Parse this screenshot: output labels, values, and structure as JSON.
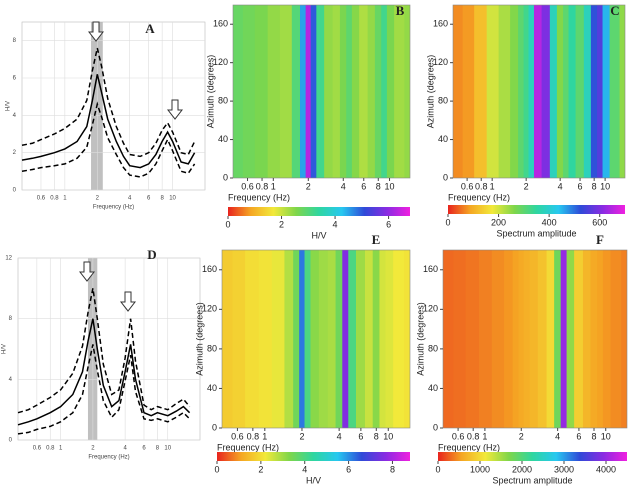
{
  "chart_data": [
    {
      "type": "line",
      "panel_label": "A",
      "xlabel": "Frequency (Hz)",
      "ylabel": "H/V",
      "xscale": "log",
      "grid": true,
      "xlim": [
        0.4,
        20
      ],
      "ylim": [
        0,
        9
      ],
      "xticks": [
        0.6,
        0.8,
        1,
        2,
        4,
        6,
        8,
        10
      ],
      "yticks": [
        0,
        2,
        4,
        6,
        8
      ],
      "shaded_band": [
        1.75,
        2.25
      ],
      "x": [
        0.4,
        0.5,
        0.6,
        0.8,
        1,
        1.3,
        1.6,
        1.8,
        2,
        2.2,
        2.5,
        3,
        3.5,
        4,
        5,
        6,
        7,
        8,
        9,
        10,
        12,
        14,
        16
      ],
      "series": [
        {
          "color": "#000000",
          "dashed": true,
          "values": [
            2.4,
            2.5,
            2.7,
            3.0,
            3.3,
            3.8,
            4.8,
            6.4,
            7.6,
            6.6,
            4.9,
            3.4,
            2.5,
            1.9,
            1.8,
            2.0,
            2.5,
            3.2,
            3.6,
            3.1,
            2.0,
            1.9,
            2.6
          ]
        },
        {
          "color": "#000000",
          "dashed": false,
          "values": [
            1.6,
            1.7,
            1.8,
            2.0,
            2.2,
            2.6,
            3.4,
            4.8,
            6.2,
            5.2,
            3.8,
            2.6,
            1.8,
            1.3,
            1.2,
            1.4,
            1.9,
            2.6,
            3.1,
            2.6,
            1.5,
            1.4,
            2.0
          ]
        },
        {
          "color": "#000000",
          "dashed": true,
          "values": [
            1.0,
            1.1,
            1.2,
            1.3,
            1.4,
            1.7,
            2.3,
            3.5,
            4.6,
            3.9,
            2.8,
            1.9,
            1.2,
            0.8,
            0.7,
            0.9,
            1.4,
            2.1,
            2.7,
            2.1,
            1.0,
            0.9,
            1.4
          ]
        }
      ]
    },
    {
      "type": "heatmap",
      "panel_label": "B",
      "xlabel": "Frequency (Hz)",
      "ylabel": "Azimuth (degrees)",
      "colorbar_label": "H/V",
      "xscale": "log",
      "xlim": [
        0.45,
        15
      ],
      "ylim": [
        0,
        180
      ],
      "xticks": [
        0.6,
        0.8,
        1,
        2,
        4,
        6,
        8,
        10
      ],
      "yticks": [
        0,
        40,
        80,
        120,
        160
      ],
      "clim": [
        0,
        6.8
      ],
      "cticks": [
        0,
        2,
        4,
        6
      ],
      "colormap": [
        "#e8231e",
        "#f5a623",
        "#f2e93a",
        "#7fd64a",
        "#2fd6a0",
        "#27c8f0",
        "#2f4ad8",
        "#8a2be2",
        "#f020e0"
      ],
      "x": [
        0.4,
        0.5,
        0.6,
        0.8,
        1,
        1.3,
        1.6,
        1.8,
        2,
        2.2,
        2.5,
        3,
        3.5,
        4,
        4.5,
        5,
        6,
        7,
        8,
        9,
        10,
        12,
        15
      ],
      "values": [
        2.6,
        2.8,
        2.7,
        2.6,
        2.4,
        2.3,
        3.0,
        4.5,
        6.3,
        5.0,
        3.2,
        2.4,
        2.3,
        2.6,
        2.9,
        2.5,
        2.2,
        2.4,
        2.8,
        3.2,
        2.6,
        2.3,
        2.4
      ]
    },
    {
      "type": "heatmap",
      "panel_label": "C",
      "xlabel": "Frequency (Hz)",
      "ylabel": "Azimuth (degrees)",
      "colorbar_label": "Spectrum amplitude",
      "xscale": "log",
      "xlim": [
        0.45,
        15
      ],
      "ylim": [
        0,
        180
      ],
      "xticks": [
        0.6,
        0.8,
        1,
        2,
        4,
        6,
        8,
        10
      ],
      "yticks": [
        0,
        40,
        80,
        120,
        160
      ],
      "clim": [
        0,
        700
      ],
      "cticks": [
        0,
        200,
        400,
        600
      ],
      "colormap": [
        "#e8231e",
        "#f5a623",
        "#f2e93a",
        "#7fd64a",
        "#2fd6a0",
        "#27c8f0",
        "#2f4ad8",
        "#8a2be2",
        "#f020e0"
      ],
      "x": [
        0.4,
        0.5,
        0.6,
        0.8,
        1,
        1.3,
        1.6,
        1.8,
        2,
        2.2,
        2.5,
        3,
        3.5,
        4,
        4.5,
        5,
        6,
        7,
        8,
        9,
        10,
        12,
        15
      ],
      "values": [
        60,
        70,
        80,
        120,
        200,
        230,
        260,
        300,
        330,
        380,
        650,
        600,
        380,
        260,
        300,
        350,
        300,
        380,
        520,
        560,
        450,
        300,
        250
      ]
    },
    {
      "type": "line",
      "panel_label": "D",
      "xlabel": "Frequency (Hz)",
      "ylabel": "H/V",
      "xscale": "log",
      "grid": true,
      "xlim": [
        0.4,
        20
      ],
      "ylim": [
        0,
        12
      ],
      "xticks": [
        0.6,
        0.8,
        1,
        2,
        4,
        6,
        8,
        10
      ],
      "yticks": [
        0,
        4,
        8,
        12
      ],
      "shaded_band": [
        1.8,
        2.2
      ],
      "x": [
        0.4,
        0.5,
        0.6,
        0.8,
        1,
        1.3,
        1.6,
        1.8,
        2,
        2.2,
        2.5,
        3,
        3.5,
        4,
        4.5,
        5,
        6,
        7,
        8,
        10,
        12,
        14,
        16
      ],
      "series": [
        {
          "color": "#000000",
          "dashed": true,
          "values": [
            1.8,
            2.0,
            2.3,
            2.8,
            3.3,
            4.4,
            6.2,
            8.4,
            10.0,
            8.0,
            5.0,
            3.0,
            3.3,
            5.4,
            8.0,
            5.2,
            2.3,
            2.0,
            2.2,
            2.0,
            2.4,
            2.7,
            2.2
          ]
        },
        {
          "color": "#000000",
          "dashed": false,
          "values": [
            1.0,
            1.2,
            1.4,
            1.8,
            2.2,
            3.0,
            4.5,
            6.5,
            8.0,
            6.0,
            3.6,
            2.2,
            2.6,
            4.5,
            6.3,
            4.0,
            1.8,
            1.6,
            1.8,
            1.6,
            1.9,
            2.2,
            1.8
          ]
        },
        {
          "color": "#000000",
          "dashed": true,
          "values": [
            0.4,
            0.5,
            0.7,
            0.9,
            1.2,
            1.8,
            3.0,
            4.8,
            6.3,
            4.6,
            2.6,
            1.5,
            2.0,
            3.9,
            5.6,
            3.2,
            1.4,
            1.3,
            1.4,
            1.2,
            1.5,
            1.8,
            1.4
          ]
        }
      ]
    },
    {
      "type": "heatmap",
      "panel_label": "E",
      "xlabel": "Frequency (Hz)",
      "ylabel": "Azimuth (degrees)",
      "colorbar_label": "H/V",
      "xscale": "log",
      "xlim": [
        0.45,
        15
      ],
      "ylim": [
        0,
        180
      ],
      "xticks": [
        0.6,
        0.8,
        1,
        2,
        4,
        6,
        8,
        10
      ],
      "yticks": [
        0,
        40,
        80,
        120,
        160
      ],
      "clim": [
        0,
        8.8
      ],
      "cticks": [
        0,
        2,
        4,
        6,
        8
      ],
      "colormap": [
        "#e8231e",
        "#f5a623",
        "#f2e93a",
        "#7fd64a",
        "#2fd6a0",
        "#27c8f0",
        "#2f4ad8",
        "#8a2be2",
        "#f020e0"
      ],
      "x": [
        0.4,
        0.5,
        0.6,
        0.8,
        1,
        1.3,
        1.6,
        1.8,
        2,
        2.2,
        2.5,
        3,
        3.5,
        4,
        4.5,
        5,
        6,
        7,
        8,
        9,
        10,
        12,
        15
      ],
      "values": [
        1.6,
        1.7,
        1.8,
        2.0,
        2.1,
        2.3,
        2.8,
        3.5,
        6.2,
        4.0,
        3.2,
        3.0,
        2.9,
        3.5,
        7.6,
        4.0,
        3.0,
        2.6,
        3.2,
        2.5,
        2.4,
        2.2,
        2.1
      ]
    },
    {
      "type": "heatmap",
      "panel_label": "F",
      "xlabel": "Frequency (Hz)",
      "ylabel": "Azimuth (degrees)",
      "colorbar_label": "Spectrum amplitude",
      "xscale": "log",
      "xlim": [
        0.45,
        15
      ],
      "ylim": [
        0,
        180
      ],
      "xticks": [
        0.6,
        0.8,
        1,
        2,
        4,
        6,
        8,
        10
      ],
      "yticks": [
        0,
        40,
        80,
        120,
        160
      ],
      "clim": [
        0,
        4500
      ],
      "cticks": [
        0,
        1000,
        2000,
        3000,
        4000
      ],
      "colormap": [
        "#e8231e",
        "#f5a623",
        "#f2e93a",
        "#7fd64a",
        "#2fd6a0",
        "#27c8f0",
        "#2f4ad8",
        "#8a2be2",
        "#f020e0"
      ],
      "x": [
        0.4,
        0.5,
        0.6,
        0.8,
        1,
        1.3,
        1.6,
        1.8,
        2,
        2.2,
        2.5,
        3,
        3.5,
        4,
        4.5,
        5,
        6,
        7,
        8,
        9,
        10,
        12,
        15
      ],
      "values": [
        300,
        300,
        320,
        350,
        400,
        450,
        500,
        550,
        600,
        650,
        700,
        800,
        1000,
        1800,
        4000,
        1600,
        900,
        700,
        600,
        550,
        500,
        450,
        400
      ]
    }
  ]
}
